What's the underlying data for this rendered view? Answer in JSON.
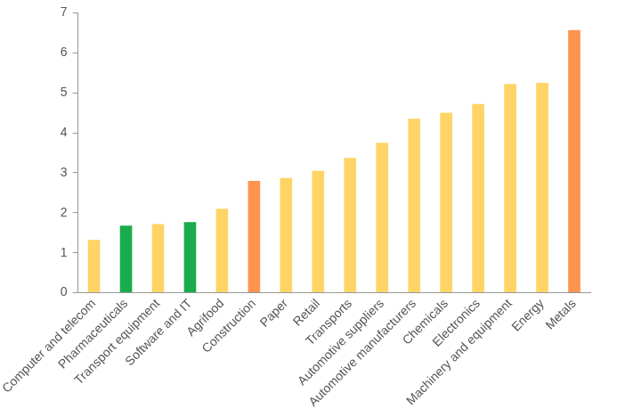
{
  "chart_data": {
    "type": "bar",
    "categories": [
      "Computer and telecom",
      "Pharmaceuticals",
      "Transport equipment",
      "Software and IT",
      "Agrifood",
      "Construction",
      "Paper",
      "Retail",
      "Transports",
      "Automotive suppliers",
      "Automotive manufacturers",
      "Chemicals",
      "Electronics",
      "Machinery and equipment",
      "Energy",
      "Metals"
    ],
    "values": [
      1.32,
      1.68,
      1.72,
      1.77,
      2.1,
      2.8,
      2.87,
      3.05,
      3.37,
      3.75,
      4.35,
      4.5,
      4.72,
      5.22,
      5.25,
      6.57
    ],
    "colors": [
      "#ffd466",
      "#1aab4b",
      "#ffd466",
      "#1aab4b",
      "#ffd466",
      "#ff9350",
      "#ffd466",
      "#ffd466",
      "#ffd466",
      "#ffd466",
      "#ffd466",
      "#ffd466",
      "#ffd466",
      "#ffd466",
      "#ffd466",
      "#ff9350"
    ],
    "ylim": [
      0,
      7
    ],
    "yticks": [
      0,
      1,
      2,
      3,
      4,
      5,
      6,
      7
    ],
    "grid": false
  }
}
